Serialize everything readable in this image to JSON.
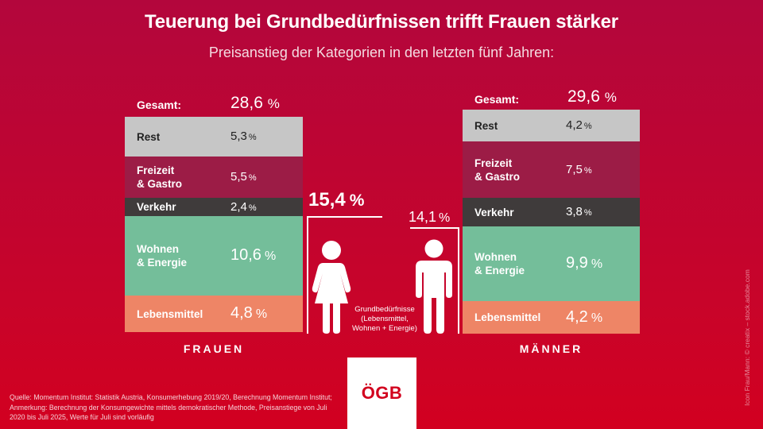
{
  "header": {
    "title": "Teuerung bei Grundbedürfnissen trifft Frauen stärker",
    "subtitle": "Preisanstieg der Kategorien in den letzten fünf Jahren:"
  },
  "colors": {
    "background_top": "#b3063c",
    "background_bottom": "#d20020",
    "rest": "#c6c6c6",
    "freizeit_gastro": "#9c1c46",
    "verkehr": "#3f3b3b",
    "wohnen_energie": "#74be9a",
    "lebensmittel": "#ee8566",
    "logo_red": "#d2001e"
  },
  "women": {
    "label": "FRAUEN",
    "total_label": "Gesamt:",
    "total_value": "28,6",
    "basic_needs_value": "15,4"
  },
  "men": {
    "label": "MÄNNER",
    "total_label": "Gesamt:",
    "total_value": "29,6",
    "basic_needs_value": "14,1"
  },
  "percent_sign": "%",
  "basic_needs_note": "Grundbedürfnisse\n(Lebensmittel,\nWohnen + Energie)",
  "source": "Quelle: Momentum Institut: Statistik Austria, Konsumerhebung 2019/20, Berechnung Momentum Institut; Anmerkung: Berechnung der Konsumgewichte mittels demokratischer Methode, Preisanstiege von Juli 2020 bis Juli 2025, Werte für Juli sind vorläufig",
  "credit": "Icon Frau/Mann: © creatix – stock.adobe.com",
  "logo": "ÖGB",
  "chart_data": {
    "type": "bar",
    "stacked": true,
    "title": "Teuerung bei Grundbedürfnissen trifft Frauen stärker",
    "subtitle": "Preisanstieg der Kategorien in den letzten fünf Jahren:",
    "unit": "%",
    "categories": [
      "Frauen",
      "Männer"
    ],
    "series": [
      {
        "name": "Rest",
        "label": "Rest",
        "values": [
          5.3,
          4.2
        ],
        "display": [
          "5,3",
          "4,2"
        ],
        "color": "#c6c6c6"
      },
      {
        "name": "Freizeit & Gastro",
        "label": "Freizeit\n& Gastro",
        "values": [
          5.5,
          7.5
        ],
        "display": [
          "5,5",
          "7,5"
        ],
        "color": "#9c1c46"
      },
      {
        "name": "Verkehr",
        "label": "Verkehr",
        "values": [
          2.4,
          3.8
        ],
        "display": [
          "2,4",
          "3,8"
        ],
        "color": "#3f3b3b"
      },
      {
        "name": "Wohnen & Energie",
        "label": "Wohnen\n& Energie",
        "values": [
          10.6,
          9.9
        ],
        "display": [
          "10,6",
          "9,9"
        ],
        "color": "#74be9a"
      },
      {
        "name": "Lebensmittel",
        "label": "Lebensmittel",
        "values": [
          4.8,
          4.2
        ],
        "display": [
          "4,8",
          "4,2"
        ],
        "color": "#ee8566"
      }
    ],
    "totals": [
      28.6,
      29.6
    ],
    "basic_needs": {
      "label": "Grundbedürfnisse (Lebensmittel, Wohnen + Energie)",
      "values": [
        15.4,
        14.1
      ]
    }
  }
}
